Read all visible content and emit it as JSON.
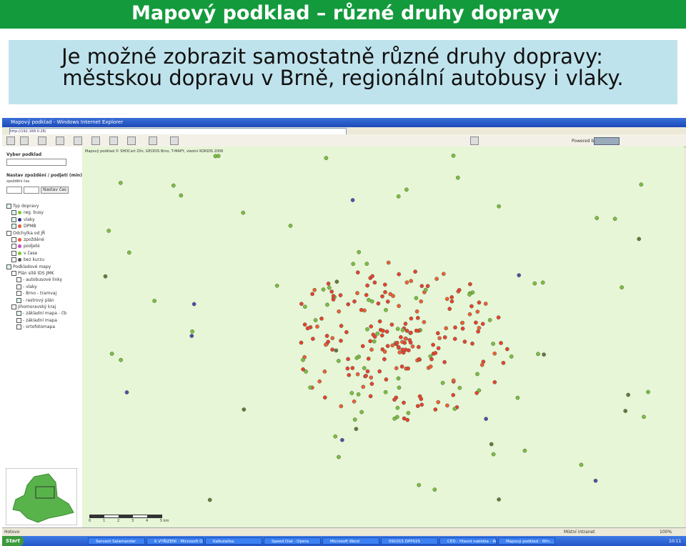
{
  "header": {
    "title": "Mapový podklad – různé druhy dopravy"
  },
  "intro": {
    "lines": [
      "Je možné zobrazit samostatně různé druhy dopravy:",
      "městskou dopravu v Brně, regionální autobusy i vlaky."
    ]
  },
  "browser": {
    "window_title": "Mapový podklad - Windows Internet Explorer",
    "address": "http://192.168.0.28/",
    "powered_by": "Powered by",
    "copyright": "Mapový podklad © SHOCart Zlín, GEODIS Brno, T-MAPY, vlastní KORDIS 2006"
  },
  "sidebar": {
    "select_label": "Vyber podklad",
    "delay_label": "Nastav zpoždění / podjetí (min)",
    "delay_sub": "zpoždění   čas",
    "button": "Nastav čas",
    "items": [
      "Typ dopravy",
      "reg. busy",
      "vlaky",
      "DPMB",
      "Odchylka od JŘ",
      "zpožděné",
      "podjeté",
      "v čase",
      "bez kurzu",
      "Podkladové mapy",
      "Plán sítě IDS JMK",
      "- autobusové linky",
      "- vlaky",
      "- Brno - tramvaj",
      "- rastrový plán",
      "Jihomoravský kraj",
      "- základní mapa - čb",
      "- základní mapa",
      "- ortofotomapa"
    ]
  },
  "map": {
    "scale": [
      "0",
      "1",
      "2",
      "3",
      "4",
      "5 km"
    ]
  },
  "status": {
    "left": "Hotovo",
    "zone": "Místní intranet",
    "zoom": "100%"
  },
  "taskbar": {
    "start": "Start",
    "items": [
      "Servant Salamander",
      "K VYŘIZENÍ - Microsoft O...",
      "Kalkulačka",
      "Speed Dial - Opera",
      "Microsoft Word",
      "091015 DPP025",
      "CED - Hlavní nabídka - W...",
      "Mapový podklad - Win..."
    ],
    "clock": "10:11"
  }
}
